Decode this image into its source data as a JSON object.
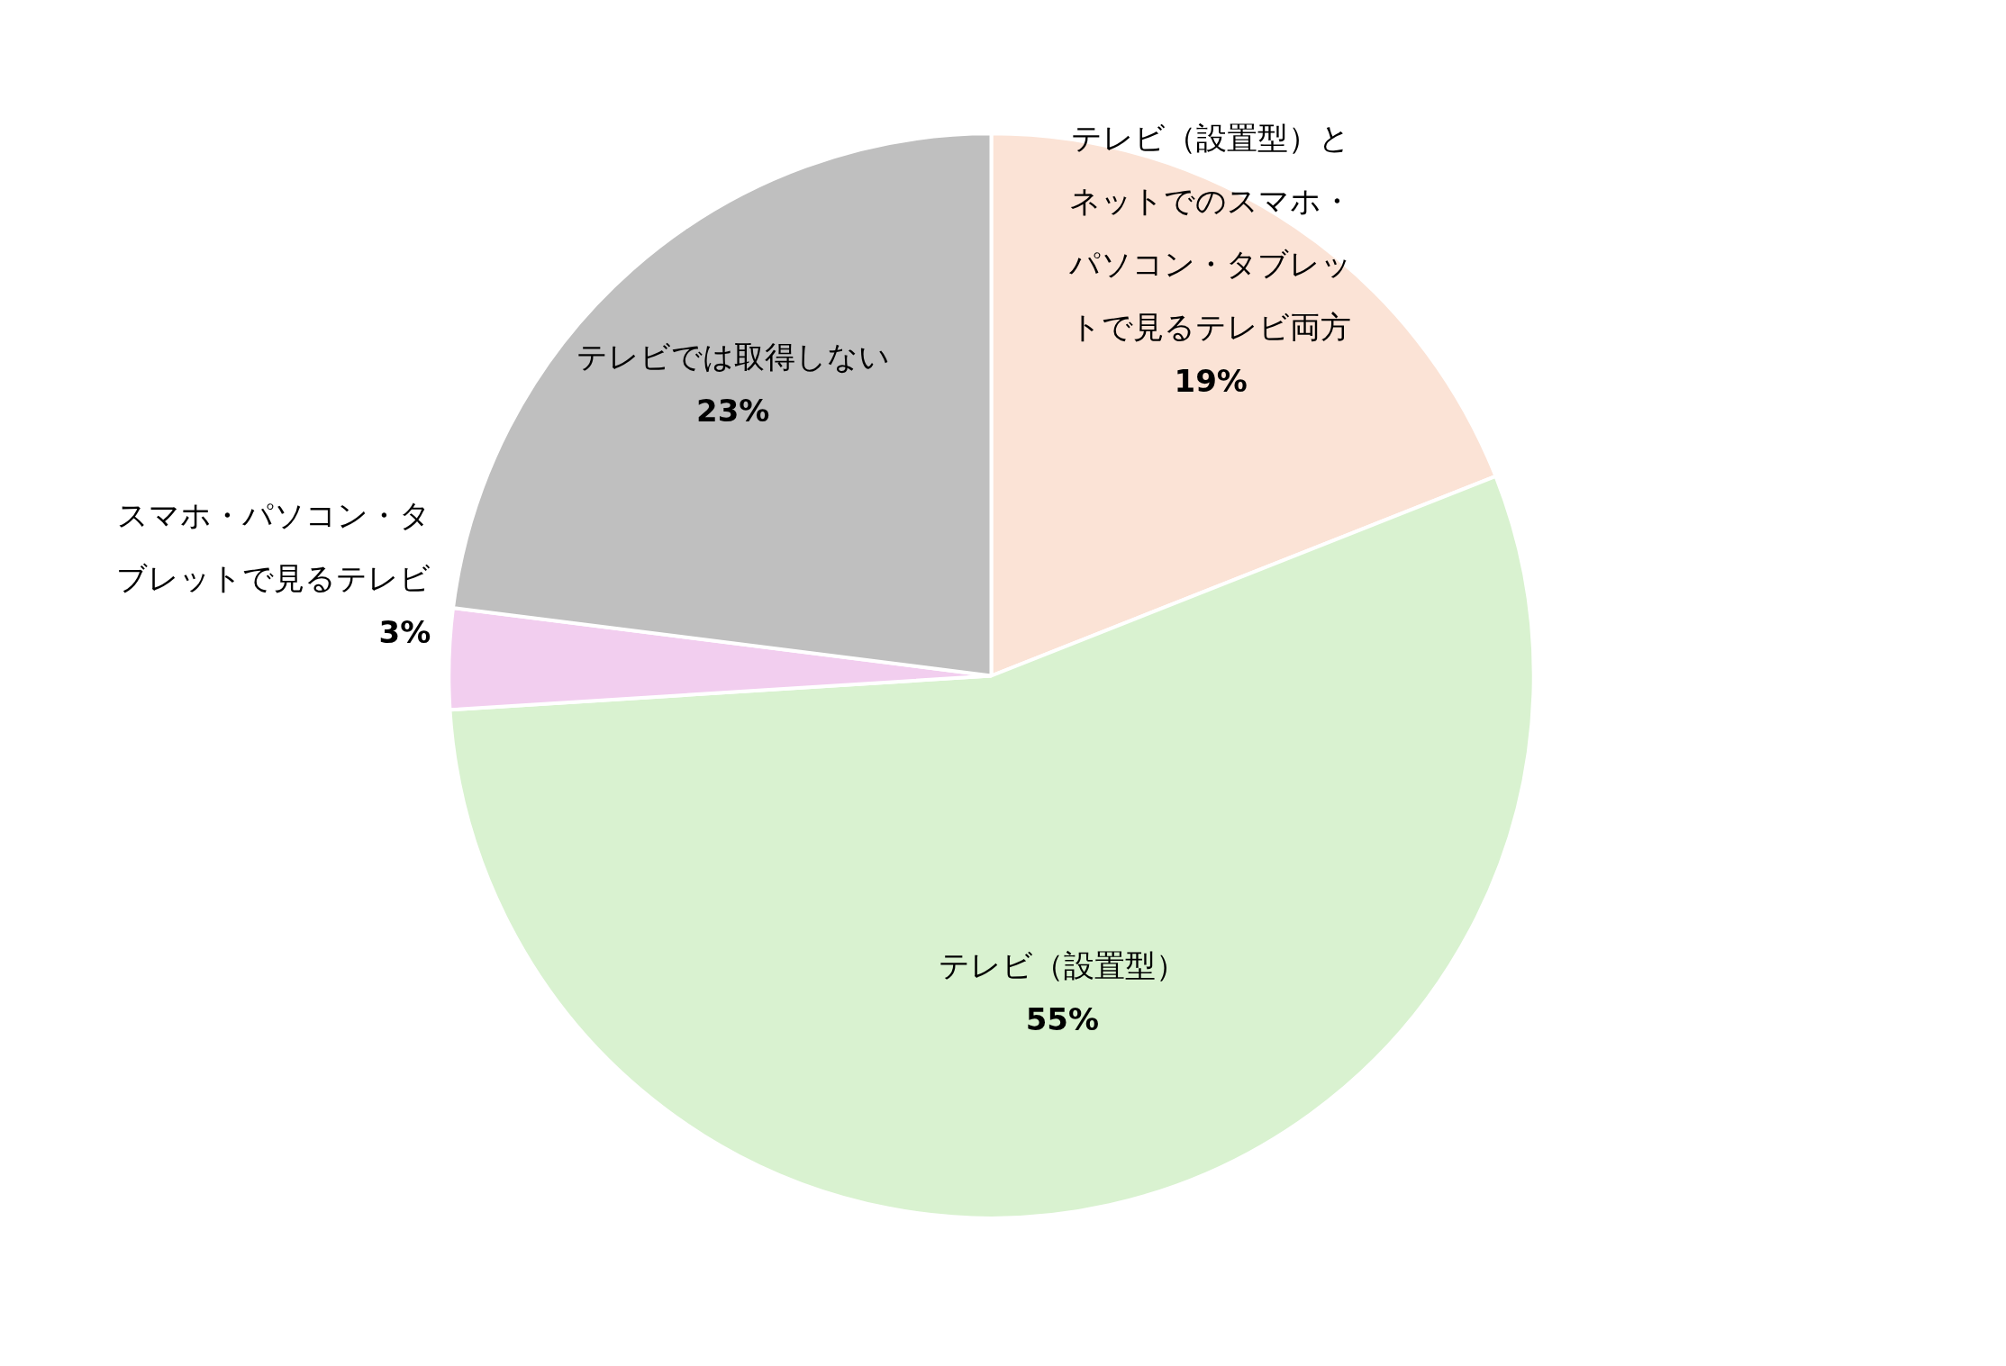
{
  "chart_data": {
    "type": "pie",
    "categories": [
      "テレビ（設置型）とネットでのスマホ・パソコン・タブレットで見るテレビ両方",
      "テレビ（設置型）",
      "スマホ・パソコン・タブレットで見るテレビ",
      "テレビでは取得しない"
    ],
    "values": [
      19,
      55,
      3,
      23
    ],
    "value_labels": [
      "19%",
      "55%",
      "3%",
      "23%"
    ],
    "colors": [
      "#fbe3d6",
      "#d9f2d0",
      "#f2ceef",
      "#bfbfbf"
    ]
  }
}
